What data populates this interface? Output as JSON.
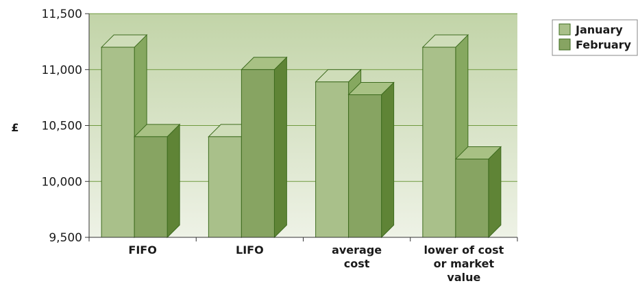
{
  "chart_data": {
    "type": "bar",
    "categories": [
      "FIFO",
      "LIFO",
      "average cost",
      "lower of cost or market value"
    ],
    "category_lines": [
      [
        "FIFO"
      ],
      [
        "LIFO"
      ],
      [
        "average",
        "cost"
      ],
      [
        "lower of cost",
        "or market",
        "value"
      ]
    ],
    "series": [
      {
        "name": "January",
        "values": [
          11200,
          10400,
          10890,
          11200
        ],
        "color": "#a9c08a",
        "side_color": "#86a860",
        "top_color": "#cfddb9"
      },
      {
        "name": "February",
        "values": [
          10400,
          11000,
          10775,
          10200
        ],
        "color": "#87a462",
        "side_color": "#5f8436",
        "top_color": "#a8c184"
      }
    ],
    "ylabel": "£",
    "ylim": [
      9500,
      11500
    ],
    "yticks": [
      9500,
      10000,
      10500,
      11000,
      11500
    ],
    "ytick_labels": [
      "9,500",
      "10,000",
      "10,500",
      "11,000",
      "11,500"
    ],
    "grid": true,
    "legend_position": "top-right",
    "colors": {
      "plot_top": "#c2d4a8",
      "plot_bottom": "#eef2e6",
      "grid": "#6f9a3e",
      "edge": "#3d6b1e",
      "axis": "#333333"
    }
  }
}
